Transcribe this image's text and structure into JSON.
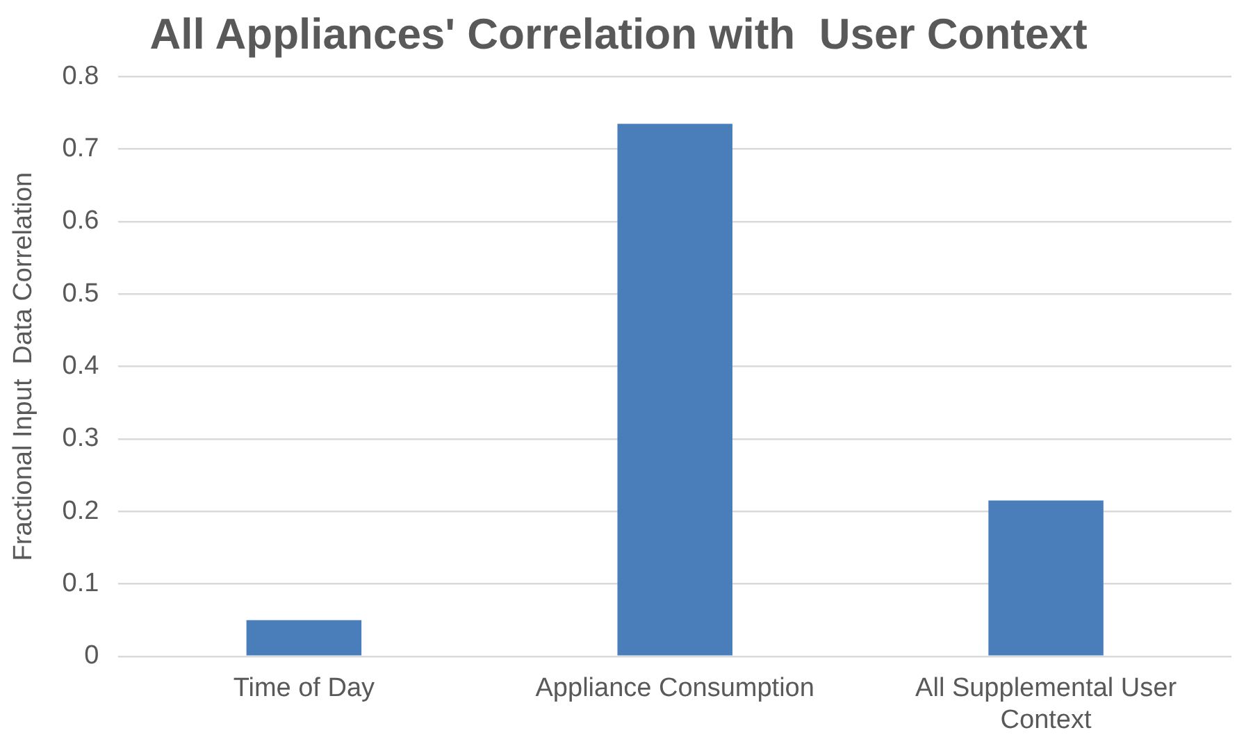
{
  "chart_data": {
    "type": "bar",
    "title": "All Appliances' Correlation with  User Context",
    "ylabel": "Fractional Input  Data Correlation",
    "categories": [
      "Time of Day",
      "Appliance Consumption",
      "All Supplemental User Context"
    ],
    "values": [
      0.05,
      0.735,
      0.215
    ],
    "color": "#4a7ebb",
    "ylim": [
      0,
      0.8
    ],
    "yticks": [
      0,
      0.1,
      0.2,
      0.3,
      0.4,
      0.5,
      0.6,
      0.7,
      0.8
    ],
    "grid": "y",
    "legend": false
  }
}
